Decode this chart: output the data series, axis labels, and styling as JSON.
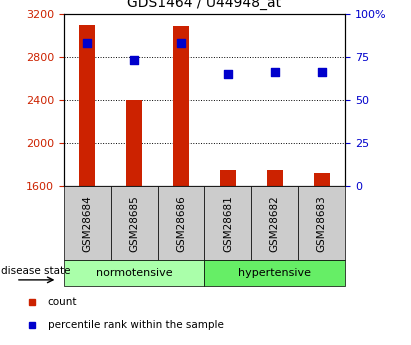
{
  "title": "GDS1464 / U44948_at",
  "samples": [
    "GSM28684",
    "GSM28685",
    "GSM28686",
    "GSM28681",
    "GSM28682",
    "GSM28683"
  ],
  "counts": [
    3100,
    2400,
    3090,
    1750,
    1755,
    1720
  ],
  "percentiles": [
    83,
    73,
    83,
    65,
    66,
    66
  ],
  "groups": [
    {
      "label": "normotensive",
      "color": "#aaffaa",
      "start": 0,
      "end": 3
    },
    {
      "label": "hypertensive",
      "color": "#66ee66",
      "start": 3,
      "end": 6
    }
  ],
  "group_label": "disease state",
  "ymin": 1600,
  "ymax": 3200,
  "y_ticks": [
    1600,
    2000,
    2400,
    2800,
    3200
  ],
  "y2min": 0,
  "y2max": 100,
  "y2_ticks": [
    0,
    25,
    50,
    75,
    100
  ],
  "y2_ticklabels": [
    "0",
    "25",
    "50",
    "75",
    "100%"
  ],
  "bar_color": "#cc2200",
  "dot_color": "#0000cc",
  "bar_width": 0.35,
  "xlabel_area_color": "#cccccc",
  "tick_color_left": "#cc2200",
  "tick_color_right": "#0000cc",
  "dot_size": 30,
  "legend_items": [
    {
      "color": "#cc2200",
      "label": "count"
    },
    {
      "color": "#0000cc",
      "label": "percentile rank within the sample"
    }
  ]
}
